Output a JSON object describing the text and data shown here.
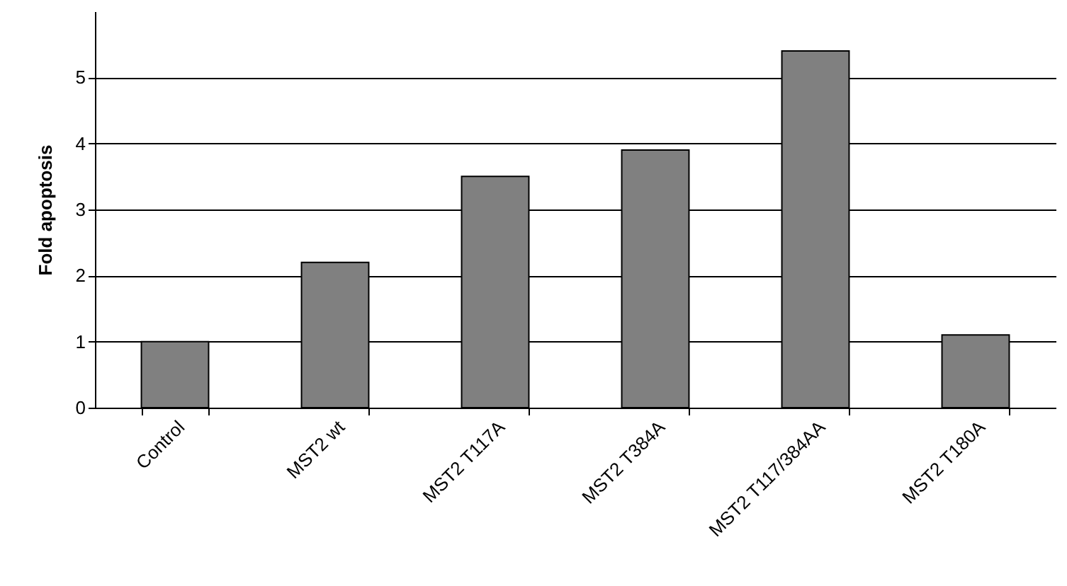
{
  "chart_data": {
    "type": "bar",
    "ylabel": "Fold apoptosis",
    "categories": [
      "Control",
      "MST2 wt",
      "MST2 T117A",
      "MST2 T384A",
      "MST2 T117/384AA",
      "MST2 T180A"
    ],
    "values": [
      1.0,
      2.2,
      3.5,
      3.9,
      5.4,
      1.1
    ],
    "color": "#808080",
    "ylim": [
      0,
      6
    ],
    "yticks": [
      0,
      1,
      2,
      3,
      4,
      5
    ],
    "grid": "y"
  }
}
